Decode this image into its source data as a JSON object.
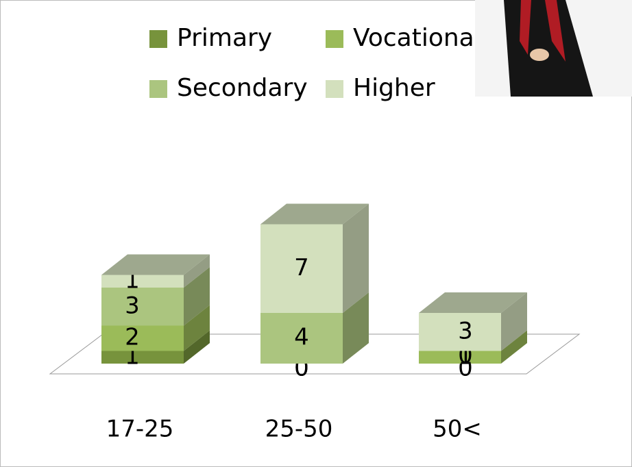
{
  "chart_data": {
    "type": "bar3d_stacked",
    "categories": [
      "17-25",
      "25-50",
      "50<"
    ],
    "series": [
      {
        "name": "Primary",
        "color": "#77933c",
        "values": [
          1,
          0,
          0
        ]
      },
      {
        "name": "Vocational",
        "color": "#9bbb59",
        "values": [
          2,
          0,
          1
        ]
      },
      {
        "name": "Secondary",
        "color": "#abc57f",
        "values": [
          3,
          4,
          0
        ]
      },
      {
        "name": "Higher",
        "color": "#d3e0bd",
        "values": [
          1,
          7,
          3
        ]
      }
    ]
  }
}
